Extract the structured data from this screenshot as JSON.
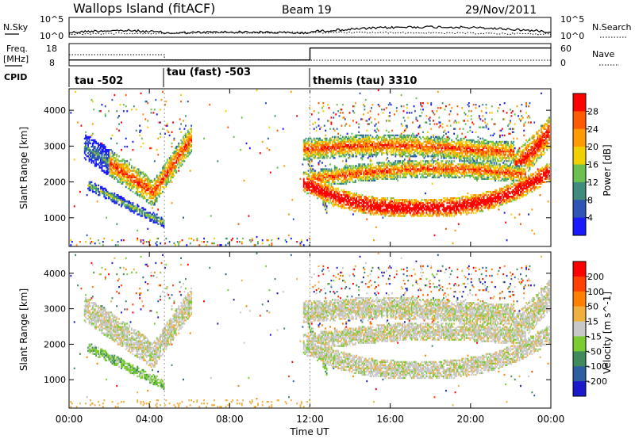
{
  "header": {
    "title": "Wallops Island (fitACF)",
    "beam": "Beam 19",
    "date": "29/Nov/2011"
  },
  "panels": {
    "nsky": {
      "left_label": "N.Sky",
      "left_ticks": [
        "10^5",
        "10^0"
      ],
      "right_ticks": [
        "10^5",
        "10^0"
      ],
      "right_label": "N.Search"
    },
    "freq": {
      "left_label_1": "Freq.",
      "left_label_2": "[MHz]",
      "left_ticks": [
        "18",
        "8"
      ],
      "right_ticks": [
        "60",
        "0"
      ],
      "right_label": "Nave"
    },
    "cpid": {
      "label": "CPID",
      "segments": [
        {
          "label": "tau -502",
          "start_h": 0
        },
        {
          "label": "tau (fast) -503",
          "start_h": 4.75
        },
        {
          "label": "themis (tau) 3310",
          "start_h": 12
        }
      ]
    }
  },
  "chart_data": [
    {
      "type": "heatmap",
      "name": "power",
      "ylabel": "Slant Range [km]",
      "ylim": [
        200,
        4600
      ],
      "xlim_hours": [
        0,
        24
      ],
      "yticks": [
        "1000",
        "2000",
        "3000",
        "4000"
      ],
      "colorbar_label": "Power [dB]",
      "colorbar_ticks": [
        "4",
        "8",
        "12",
        "16",
        "20",
        "24",
        "28"
      ],
      "colors": [
        "#1a1aff",
        "#2e55b4",
        "#3f8c7e",
        "#6cc050",
        "#f0d000",
        "#ff9a00",
        "#ff5a00",
        "#ff0000"
      ]
    },
    {
      "type": "heatmap",
      "name": "velocity",
      "ylabel": "Slant Range [km]",
      "ylim": [
        200,
        4600
      ],
      "xlim_hours": [
        0,
        24
      ],
      "yticks": [
        "1000",
        "2000",
        "3000",
        "4000"
      ],
      "colorbar_label": "Velocity [m s^-1]",
      "colorbar_ticks": [
        "200",
        "100",
        "50",
        "15",
        "-15",
        "-50",
        "-100",
        "-200"
      ],
      "colors": [
        "#1a1acc",
        "#2e5fa0",
        "#3f8c5a",
        "#7acc30",
        "#c8c8c8",
        "#f0b040",
        "#ff8000",
        "#ff4000",
        "#ff0000"
      ]
    }
  ],
  "xaxis": {
    "ticks": [
      "00:00",
      "04:00",
      "08:00",
      "12:00",
      "16:00",
      "20:00",
      "00:00"
    ],
    "label": "Time UT"
  }
}
